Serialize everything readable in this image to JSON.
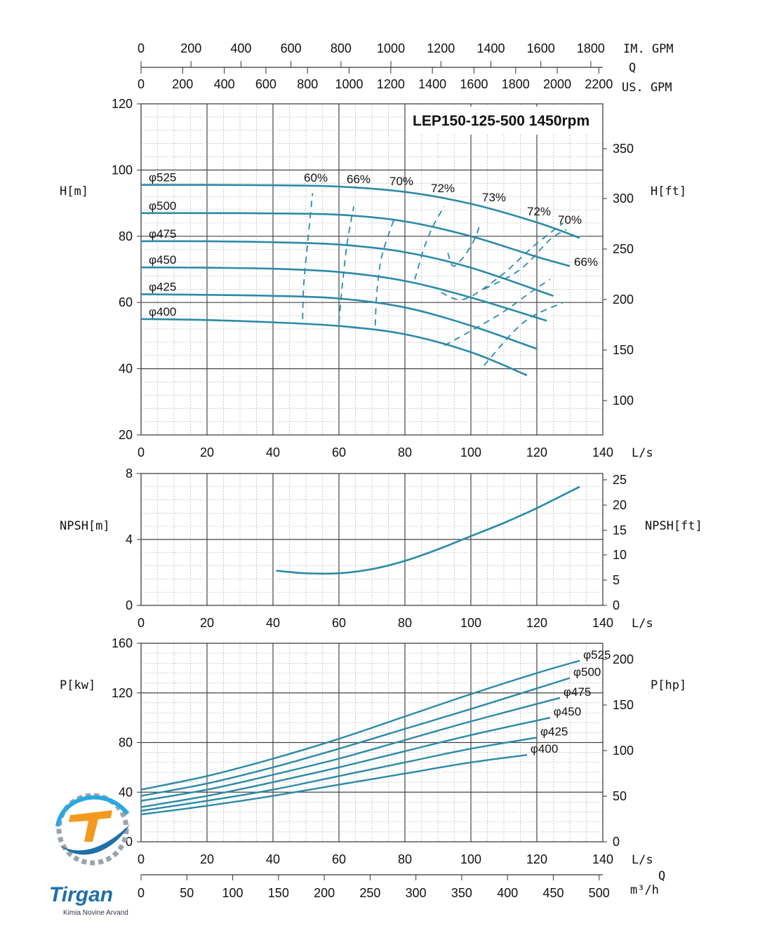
{
  "title": "LEP150-125-500 1450rpm",
  "flow_scales": {
    "im_gpm": {
      "label": "IM. GPM",
      "ticks": [
        "0",
        "200",
        "400",
        "600",
        "800",
        "1000",
        "1200",
        "1400",
        "1600",
        "1800"
      ]
    },
    "q_top_label": "Q",
    "us_gpm": {
      "label": "US. GPM",
      "ticks": [
        "0",
        "200",
        "400",
        "600",
        "800",
        "1000",
        "1200",
        "1400",
        "1600",
        "1800",
        "2000",
        "2200"
      ]
    },
    "ls": {
      "label": "L/s",
      "ticks": [
        "0",
        "20",
        "40",
        "60",
        "80",
        "100",
        "120",
        "140"
      ]
    },
    "m3h": {
      "label": "m³/h",
      "ticks": [
        "0",
        "50",
        "100",
        "150",
        "200",
        "250",
        "300",
        "350",
        "400",
        "450",
        "500"
      ]
    },
    "q_bottom_label": "Q"
  },
  "chart_data": [
    {
      "type": "line",
      "title": "LEP150-125-500 1450rpm",
      "xlabel": "L/s",
      "ylabel": "H[m]",
      "ylabel_right": "H[ft]",
      "xlim": [
        0,
        140
      ],
      "ylim": [
        20,
        120
      ],
      "xticks": [
        "0",
        "20",
        "40",
        "60",
        "80",
        "100",
        "120",
        "140"
      ],
      "yticks": [
        "20",
        "40",
        "60",
        "80",
        "100",
        "120"
      ],
      "yticks_right": [
        "100",
        "150",
        "200",
        "250",
        "300",
        "350"
      ],
      "grid": true,
      "series": [
        {
          "name": "φ525",
          "x": [
            0,
            20,
            40,
            60,
            80,
            100,
            120,
            133
          ],
          "y": [
            95.5,
            95.5,
            95.4,
            95,
            93.4,
            89.8,
            84.2,
            79.5
          ]
        },
        {
          "name": "φ500",
          "x": [
            0,
            20,
            40,
            60,
            80,
            100,
            120,
            130
          ],
          "y": [
            87,
            87,
            86.9,
            86.5,
            84.5,
            80,
            73.8,
            71
          ]
        },
        {
          "name": "φ475",
          "x": [
            0,
            20,
            40,
            60,
            80,
            100,
            125
          ],
          "y": [
            78.5,
            78.5,
            78.2,
            77.5,
            75.2,
            70.5,
            62
          ]
        },
        {
          "name": "φ450",
          "x": [
            0,
            20,
            40,
            60,
            80,
            100,
            123
          ],
          "y": [
            70.6,
            70.5,
            70.2,
            69.2,
            66.5,
            61.5,
            54.5
          ]
        },
        {
          "name": "φ425",
          "x": [
            0,
            20,
            40,
            60,
            80,
            100,
            120
          ],
          "y": [
            62.5,
            62.3,
            62,
            61.2,
            58.5,
            53,
            46
          ]
        },
        {
          "name": "φ400",
          "x": [
            0,
            20,
            40,
            60,
            80,
            100,
            117
          ],
          "y": [
            55,
            54.7,
            54,
            52.9,
            50.4,
            45,
            38
          ]
        }
      ],
      "efficiency_curves": [
        {
          "name": "60%",
          "x": [
            49,
            49.3,
            50.5,
            52
          ],
          "y": [
            55,
            65,
            78,
            93
          ]
        },
        {
          "name": "66%",
          "x": [
            60,
            61,
            62.5,
            64.5
          ],
          "y": [
            54,
            65,
            78,
            89
          ]
        },
        {
          "name": "70%",
          "x": [
            71,
            71.5,
            73,
            77
          ],
          "y": [
            53,
            63,
            74,
            86
          ]
        },
        {
          "name": "72%",
          "x": [
            83,
            86,
            89,
            92
          ],
          "y": [
            67,
            77,
            84,
            89
          ]
        },
        {
          "name": "73%",
          "x": [
            93,
            95,
            100,
            103
          ],
          "y": [
            75,
            71,
            77,
            84
          ]
        },
        {
          "name": "72%",
          "x": [
            91,
            98,
            109,
            119,
            128
          ],
          "y": [
            63,
            61,
            68,
            77,
            84
          ]
        },
        {
          "name": "70%",
          "x": [
            104,
            115,
            124,
            129
          ],
          "y": [
            64,
            70,
            79,
            82
          ]
        },
        {
          "name": "66%",
          "x": [
            92,
            108,
            118,
            124
          ],
          "y": [
            47,
            56,
            63,
            67
          ]
        },
        {
          "name": "",
          "x": [
            104,
            116,
            128
          ],
          "y": [
            41,
            54,
            60
          ]
        }
      ]
    },
    {
      "type": "line",
      "xlabel": "L/s",
      "ylabel": "NPSH[m]",
      "ylabel_right": "NPSH[ft]",
      "xlim": [
        0,
        140
      ],
      "ylim": [
        0,
        8
      ],
      "xticks": [
        "0",
        "20",
        "40",
        "60",
        "80",
        "100",
        "120",
        "140"
      ],
      "yticks": [
        "0",
        "4",
        "8"
      ],
      "yticks_right": [
        "0",
        "5",
        "10",
        "15",
        "20",
        "25"
      ],
      "grid": true,
      "series": [
        {
          "name": "",
          "x": [
            41,
            50,
            60,
            70,
            80,
            90,
            100,
            110,
            120,
            133
          ],
          "y": [
            2.1,
            1.95,
            1.95,
            2.2,
            2.7,
            3.4,
            4.2,
            5.0,
            5.9,
            7.2
          ]
        }
      ]
    },
    {
      "type": "line",
      "xlabel": "L/s",
      "ylabel": "P[kw]",
      "ylabel_right": "P[hp]",
      "xlim": [
        0,
        140
      ],
      "ylim": [
        0,
        160
      ],
      "xticks": [
        "0",
        "20",
        "40",
        "60",
        "80",
        "100",
        "120",
        "140"
      ],
      "yticks": [
        "0",
        "40",
        "80",
        "120",
        "160"
      ],
      "yticks_right": [
        "0",
        "50",
        "100",
        "150",
        "200"
      ],
      "grid": true,
      "series": [
        {
          "name": "φ525",
          "x": [
            0,
            20,
            40,
            60,
            80,
            100,
            120,
            133
          ],
          "y": [
            42,
            53,
            67,
            83,
            101,
            119,
            136,
            146
          ]
        },
        {
          "name": "φ500",
          "x": [
            0,
            20,
            40,
            60,
            80,
            100,
            130
          ],
          "y": [
            37,
            47,
            60,
            75,
            91,
            107,
            132
          ]
        },
        {
          "name": "φ475",
          "x": [
            0,
            20,
            40,
            60,
            80,
            100,
            127
          ],
          "y": [
            33,
            42,
            54,
            67,
            82,
            97,
            116
          ]
        },
        {
          "name": "φ450",
          "x": [
            0,
            20,
            40,
            60,
            80,
            100,
            124
          ],
          "y": [
            28,
            37,
            48,
            60,
            73,
            86,
            100
          ]
        },
        {
          "name": "φ425",
          "x": [
            0,
            20,
            40,
            60,
            80,
            100,
            120
          ],
          "y": [
            25,
            33,
            42,
            53,
            64,
            75,
            84
          ]
        },
        {
          "name": "φ400",
          "x": [
            0,
            20,
            40,
            60,
            80,
            100,
            117
          ],
          "y": [
            22,
            29,
            37,
            46,
            55,
            64,
            70
          ]
        }
      ]
    }
  ],
  "logo": {
    "name": "Tirgan",
    "subtitle": "Kimia Novine Arvand"
  },
  "colors": {
    "curve": "#2a8aa8",
    "grid": "#999999",
    "logo_blue": "#1f6fa8",
    "logo_orange": "#f29a1f"
  }
}
